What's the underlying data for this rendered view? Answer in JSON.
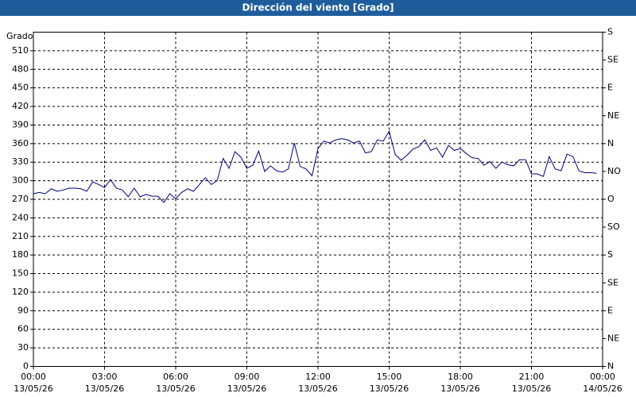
{
  "chart_data": {
    "type": "line",
    "title": "Dirección del viento [Grado]",
    "y_label": "Grado",
    "x": [
      0,
      0.25,
      0.5,
      0.75,
      1,
      1.25,
      1.5,
      1.75,
      2,
      2.25,
      2.5,
      2.75,
      3,
      3.25,
      3.5,
      3.75,
      4,
      4.25,
      4.5,
      4.75,
      5,
      5.25,
      5.5,
      5.75,
      6,
      6.25,
      6.5,
      6.75,
      7,
      7.25,
      7.5,
      7.75,
      8,
      8.25,
      8.5,
      8.75,
      9,
      9.25,
      9.5,
      9.75,
      10,
      10.25,
      10.5,
      10.75,
      11,
      11.25,
      11.5,
      11.75,
      12,
      12.25,
      12.5,
      12.75,
      13,
      13.25,
      13.5,
      13.75,
      14,
      14.25,
      14.5,
      14.75,
      15,
      15.25,
      15.5,
      15.75,
      16,
      16.25,
      16.5,
      16.75,
      17,
      17.25,
      17.5,
      17.75,
      18,
      18.25,
      18.5,
      18.75,
      19,
      19.25,
      19.5,
      19.75,
      20,
      20.25,
      20.5,
      20.75,
      21,
      21.25,
      21.5,
      21.75,
      22,
      22.25,
      22.5,
      22.75,
      23,
      23.25,
      23.5,
      23.75
    ],
    "series": [
      {
        "name": "Dirección del viento",
        "color": "#000080",
        "values": [
          279,
          281,
          279,
          287,
          283,
          285,
          288,
          288,
          287,
          283,
          298,
          294,
          289,
          302,
          288,
          285,
          274,
          288,
          274,
          278,
          275,
          275,
          265,
          279,
          271,
          281,
          287,
          283,
          294,
          305,
          294,
          300,
          336,
          320,
          347,
          338,
          320,
          325,
          348,
          315,
          324,
          316,
          314,
          319,
          361,
          323,
          319,
          308,
          352,
          364,
          361,
          366,
          368,
          366,
          361,
          364,
          345,
          347,
          366,
          364,
          380,
          343,
          333,
          341,
          351,
          355,
          366,
          349,
          353,
          338,
          357,
          349,
          352,
          344,
          337,
          336,
          325,
          331,
          320,
          330,
          326,
          324,
          334,
          334,
          311,
          311,
          307,
          339,
          319,
          316,
          343,
          339,
          316,
          313,
          313,
          312
        ]
      }
    ],
    "xlim": [
      0,
      24
    ],
    "xticks": [
      {
        "value": 0,
        "label": "00:00"
      },
      {
        "value": 3,
        "label": "03:00"
      },
      {
        "value": 6,
        "label": "06:00"
      },
      {
        "value": 9,
        "label": "09:00"
      },
      {
        "value": 12,
        "label": "12:00"
      },
      {
        "value": 15,
        "label": "15:00"
      },
      {
        "value": 18,
        "label": "18:00"
      },
      {
        "value": 21,
        "label": "21:00"
      },
      {
        "value": 24,
        "label": "00:00"
      }
    ],
    "xtick_dates": [
      "13/05/26",
      "13/05/26",
      "13/05/26",
      "13/05/26",
      "13/05/26",
      "13/05/26",
      "13/05/26",
      "13/05/26",
      "14/05/26"
    ],
    "ylim": [
      0,
      540
    ],
    "yticks": [
      0,
      30,
      60,
      90,
      120,
      150,
      180,
      210,
      240,
      270,
      300,
      330,
      360,
      390,
      420,
      450,
      480,
      510
    ],
    "y2lim": [
      0,
      540
    ],
    "y2ticks": [
      {
        "value": 0,
        "label": "N"
      },
      {
        "value": 45,
        "label": "NE"
      },
      {
        "value": 90,
        "label": "E"
      },
      {
        "value": 135,
        "label": "SE"
      },
      {
        "value": 180,
        "label": "S"
      },
      {
        "value": 225,
        "label": "SO"
      },
      {
        "value": 270,
        "label": "O"
      },
      {
        "value": 315,
        "label": "NO"
      },
      {
        "value": 360,
        "label": "N"
      },
      {
        "value": 405,
        "label": "NE"
      },
      {
        "value": 450,
        "label": "E"
      },
      {
        "value": 495,
        "label": "SE"
      },
      {
        "value": 540,
        "label": "S"
      }
    ],
    "grid": true
  }
}
